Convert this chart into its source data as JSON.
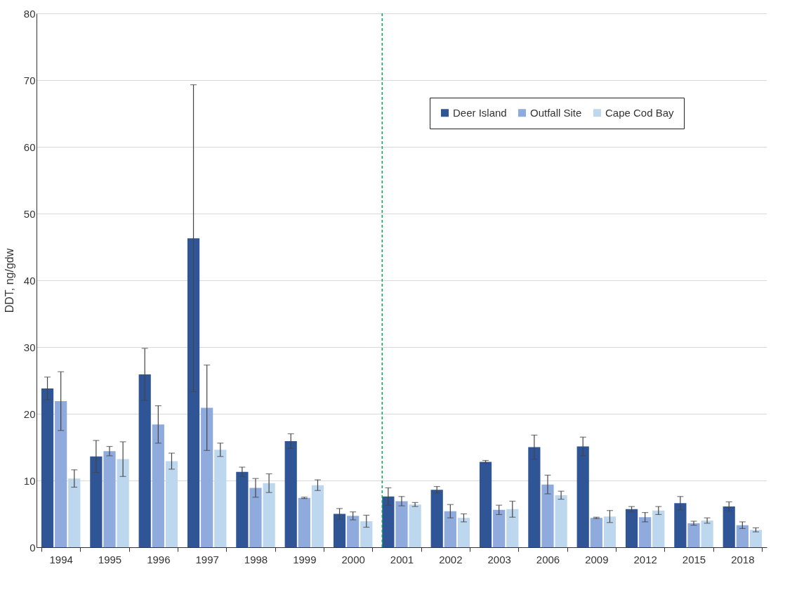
{
  "chart_data": {
    "type": "bar",
    "ylabel": "DDT, ng/gdw",
    "categories": [
      "1994",
      "1995",
      "1996",
      "1997",
      "1998",
      "1999",
      "2000",
      "2001",
      "2002",
      "2003",
      "2006",
      "2009",
      "2012",
      "2015",
      "2018"
    ],
    "series": [
      {
        "name": "Deer Island",
        "color": "#2f5597",
        "values": [
          23.8,
          13.6,
          25.9,
          46.3,
          11.3,
          15.9,
          5.0,
          7.6,
          8.6,
          12.8,
          15.0,
          15.1,
          5.7,
          6.6,
          6.1
        ],
        "errors": [
          1.7,
          2.4,
          3.9,
          23,
          0.7,
          1.1,
          0.8,
          1.3,
          0.5,
          0.2,
          1.8,
          1.4,
          0.4,
          1.0,
          0.7
        ]
      },
      {
        "name": "Outfall Site",
        "color": "#8faadc",
        "values": [
          21.9,
          14.4,
          18.4,
          20.9,
          8.9,
          7.4,
          4.7,
          6.9,
          5.4,
          5.6,
          9.4,
          4.4,
          4.5,
          3.6,
          3.3
        ],
        "errors": [
          4.4,
          0.7,
          2.8,
          6.4,
          1.4,
          0.1,
          0.6,
          0.7,
          1.0,
          0.7,
          1.4,
          0.1,
          0.7,
          0.3,
          0.5
        ]
      },
      {
        "name": "Cape Cod Bay",
        "color": "#bdd7ee",
        "values": [
          10.3,
          13.2,
          12.9,
          14.6,
          9.6,
          9.3,
          3.9,
          6.4,
          4.4,
          5.7,
          7.8,
          4.6,
          5.5,
          4.0,
          2.6
        ],
        "errors": [
          1.3,
          2.6,
          1.2,
          1.0,
          1.4,
          0.8,
          0.9,
          0.3,
          0.6,
          1.2,
          0.6,
          0.9,
          0.6,
          0.4,
          0.3
        ]
      }
    ],
    "ylim": [
      0,
      80
    ],
    "yticks": [
      0,
      10,
      20,
      30,
      40,
      50,
      60,
      70,
      80
    ],
    "grid": "y",
    "legend": "top right",
    "ref_lines": [
      {
        "axis": "x",
        "value": "2001",
        "color": "#00b050",
        "line_style": "dashed"
      }
    ]
  }
}
